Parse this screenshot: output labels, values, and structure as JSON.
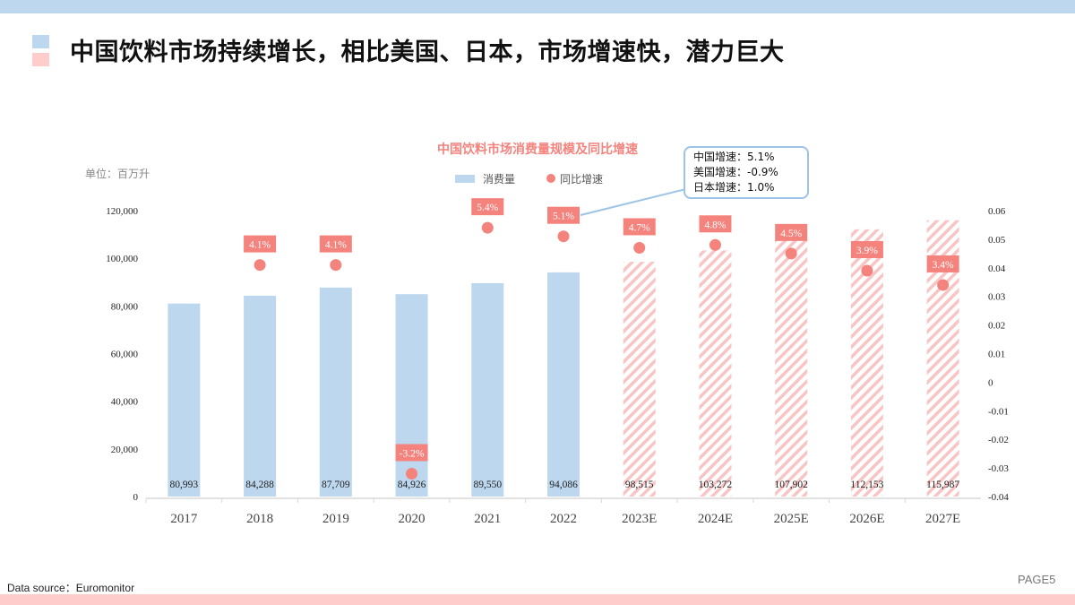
{
  "slide": {
    "title": "中国饮料市场持续增长，相比美国、日本，市场增速快，潜力巨大",
    "source": "Data source：Euromonitor",
    "page": "PAGE5",
    "colors": {
      "top_bar": "#bdd7ee",
      "bottom_bar": "#ffcccc"
    }
  },
  "callout": {
    "lines": [
      "中国增速：5.1%",
      "美国增速：-0.9%",
      "日本增速：1.0%"
    ]
  },
  "chart_data": {
    "type": "bar",
    "title": "中国饮料市场消费量规模及同比增速",
    "unit_label": "单位：百万升",
    "categories": [
      "2017",
      "2018",
      "2019",
      "2020",
      "2021",
      "2022",
      "2023E",
      "2024E",
      "2025E",
      "2026E",
      "2027E"
    ],
    "legend": {
      "placement": "top-center",
      "entries": [
        "消费量",
        "同比增速"
      ]
    },
    "series": [
      {
        "name": "消费量",
        "type": "bar",
        "axis": "left",
        "values": [
          80993,
          84288,
          87709,
          84926,
          89550,
          94086,
          98515,
          103272,
          107902,
          112153,
          115987
        ],
        "labels": [
          "80,993",
          "84,288",
          "87,709",
          "84,926",
          "89,550",
          "94,086",
          "98,515",
          "103,272",
          "107,902",
          "112,153",
          "115,987"
        ],
        "estimated_from_index": 6,
        "color": "#bdd7ee",
        "estimate_fill": "hatched pink #f8c4c4"
      },
      {
        "name": "同比增速",
        "type": "scatter",
        "axis": "right",
        "values": [
          null,
          0.041,
          0.041,
          -0.032,
          0.054,
          0.051,
          0.047,
          0.048,
          0.045,
          0.039,
          0.034
        ],
        "labels": [
          "",
          "4.1%",
          "4.1%",
          "-3.2%",
          "5.4%",
          "5.1%",
          "4.7%",
          "4.8%",
          "4.5%",
          "3.9%",
          "3.4%"
        ],
        "color": "#f4837d"
      }
    ],
    "y_left": {
      "range": [
        0,
        120000
      ],
      "ticks": [
        "0",
        "20,000",
        "40,000",
        "60,000",
        "80,000",
        "100,000",
        "120,000"
      ]
    },
    "y_right": {
      "range": [
        -0.04,
        0.06
      ],
      "ticks": [
        "-0.04",
        "-0.03",
        "-0.02",
        "-0.01",
        "0",
        "0.01",
        "0.02",
        "0.03",
        "0.04",
        "0.05",
        "0.06"
      ]
    },
    "grid": false
  }
}
